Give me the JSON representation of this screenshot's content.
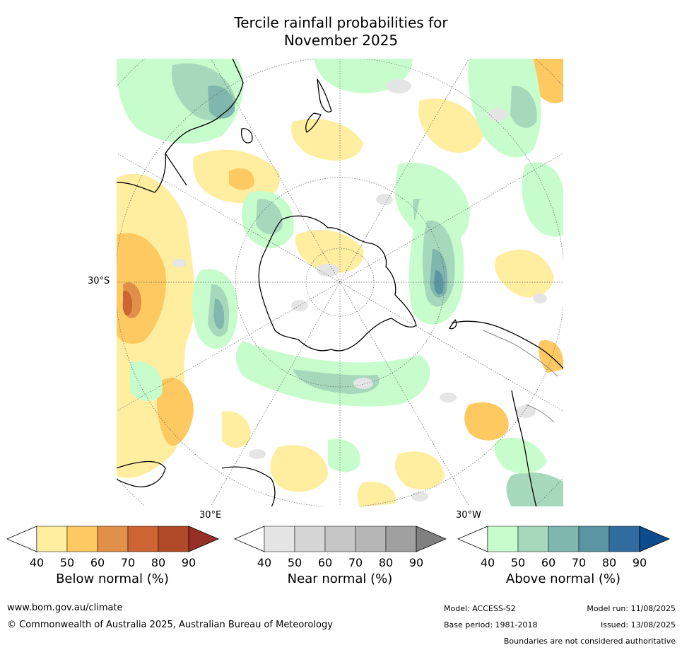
{
  "title_line1": "Tercile rainfall probabilities for",
  "title_line2": "November 2025",
  "map": {
    "projection": "south-polar-stereographic",
    "labels": {
      "lat_30s": "30°S",
      "lon_30e": "30°E",
      "lon_30w": "30°W"
    },
    "colors": {
      "ocean_background": "#ffffff",
      "coastline": "#000000",
      "boundary": "#888888",
      "graticule": "#666666"
    }
  },
  "legend": {
    "below": {
      "title": "Below normal (%)",
      "ticks": [
        "40",
        "50",
        "60",
        "70",
        "80",
        "90"
      ],
      "colors": [
        "#ffffff",
        "#ffeda0",
        "#fec960",
        "#e09048",
        "#cc6433",
        "#b04a28",
        "#963024"
      ]
    },
    "near": {
      "title": "Near normal (%)",
      "ticks": [
        "40",
        "50",
        "60",
        "70",
        "80",
        "90"
      ],
      "colors": [
        "#ffffff",
        "#e5e5e5",
        "#d6d6d6",
        "#c6c6c6",
        "#b5b5b5",
        "#a0a0a0",
        "#808080"
      ]
    },
    "above": {
      "title": "Above normal (%)",
      "ticks": [
        "40",
        "50",
        "60",
        "70",
        "80",
        "90"
      ],
      "colors": [
        "#ffffff",
        "#c7fdcc",
        "#a6d9bb",
        "#7fb6ae",
        "#5b94a2",
        "#336c9e",
        "#0c4b8c"
      ]
    }
  },
  "footer": {
    "website": "www.bom.gov.au/climate",
    "copyright": "© Commonwealth of Australia 2025, Australian Bureau of Meteorology",
    "model": "Model: ACCESS-S2",
    "base_period": "Base period: 1981-2018",
    "model_run": "Model run: 11/08/2025",
    "issued": "Issued: 13/08/2025",
    "disclaimer": "Boundaries are not considered authoritative"
  }
}
